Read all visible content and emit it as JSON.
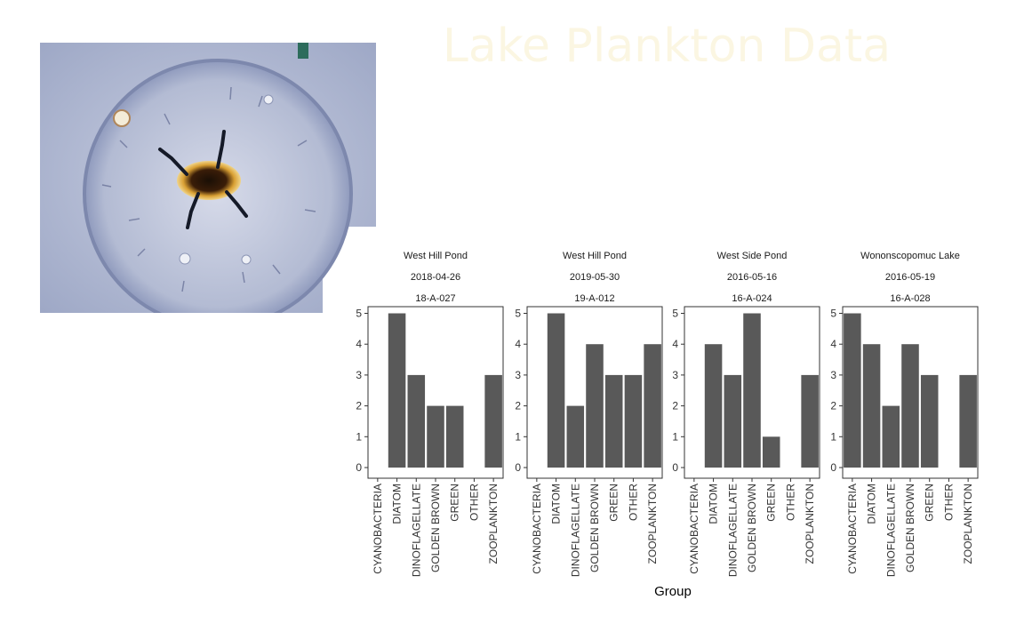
{
  "page": {
    "title": "Lake Plankton Data"
  },
  "colors": {
    "bar": "#595959",
    "title": "#fbf6e2",
    "photo_bg": "#aeb7d0"
  },
  "image": {
    "icon": "diatom-micrograph-icon"
  },
  "chart_data": {
    "type": "bar",
    "xlabel": "Group",
    "ylabel": "",
    "ylim": [
      0,
      5.2
    ],
    "yticks": [
      0,
      1,
      2,
      3,
      4,
      5
    ],
    "grid": false,
    "categories": [
      "CYANOBACTERIA",
      "DIATOM",
      "DINOFLAGELLATE",
      "GOLDEN BROWN",
      "GREEN",
      "OTHER",
      "ZOOPLANKTON"
    ],
    "panels": [
      {
        "site": "West Hill Pond",
        "date": "2018-04-26",
        "sample": "18-A-027",
        "values": [
          0,
          5,
          3,
          2,
          2,
          0,
          3
        ]
      },
      {
        "site": "West Hill Pond",
        "date": "2019-05-30",
        "sample": "19-A-012",
        "values": [
          0,
          5,
          2,
          4,
          3,
          3,
          4
        ]
      },
      {
        "site": "West Side Pond",
        "date": "2016-05-16",
        "sample": "16-A-024",
        "values": [
          0,
          4,
          3,
          5,
          1,
          0,
          3
        ]
      },
      {
        "site": "Wononscopomuc Lake",
        "date": "2016-05-19",
        "sample": "16-A-028",
        "values": [
          5,
          4,
          2,
          4,
          3,
          0,
          3
        ]
      }
    ]
  }
}
